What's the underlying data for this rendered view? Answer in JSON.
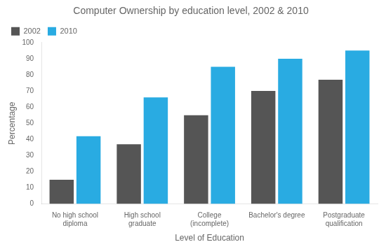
{
  "chart_data": {
    "type": "bar",
    "title": "Computer Ownership by education level, 2002 & 2010",
    "categories": [
      "No high school\ndiploma",
      "High school\ngraduate",
      "College\n(incomplete)",
      "Bachelor's degree",
      "Postgraduate\nqualification"
    ],
    "series": [
      {
        "name": "2002",
        "color": "#555555",
        "values": [
          15,
          37,
          55,
          70,
          77
        ]
      },
      {
        "name": "2010",
        "color": "#29abe2",
        "values": [
          42,
          66,
          85,
          90,
          95
        ]
      }
    ],
    "xlabel": "Level of Education",
    "ylabel": "Percentage",
    "ylim": [
      0,
      100
    ],
    "yticks": [
      0,
      10,
      20,
      30,
      40,
      50,
      60,
      70,
      80,
      90,
      100
    ],
    "grid": false,
    "legend": "upper left"
  }
}
